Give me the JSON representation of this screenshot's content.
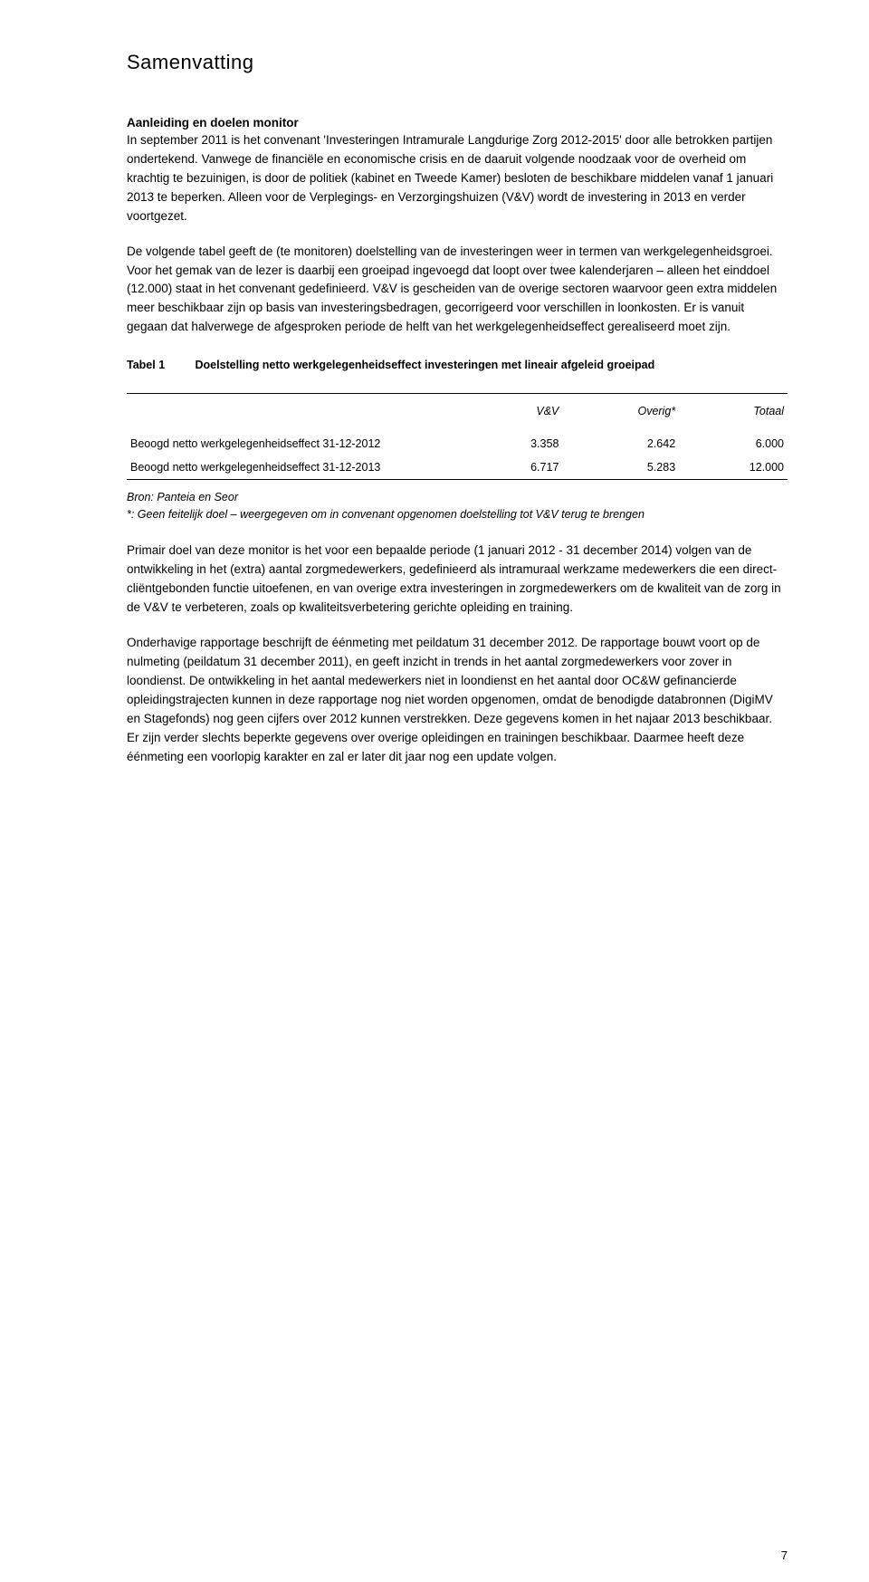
{
  "title": "Samenvatting",
  "section_head": "Aanleiding en doelen monitor",
  "p1": "In september 2011 is het convenant 'Investeringen Intramurale Langdurige Zorg 2012-2015' door alle betrokken partijen ondertekend.",
  "p2": "Vanwege de financiële en economische crisis en de daaruit volgende noodzaak voor de overheid om krachtig te bezuinigen, is door de politiek (kabinet en Tweede Kamer) besloten de beschikbare middelen vanaf 1 januari 2013 te beperken. Alleen voor de Verplegings- en Verzorgingshuizen (V&V) wordt de investering in 2013 en verder voortgezet.",
  "p3": "De volgende tabel geeft de (te monitoren) doelstelling van de investeringen weer in termen van werkgelegenheidsgroei. Voor het gemak van de lezer is daarbij een groeipad ingevoegd dat loopt over twee kalenderjaren – alleen het einddoel (12.000) staat in het convenant gedefinieerd. V&V is gescheiden van de overige sectoren waarvoor geen extra middelen meer beschikbaar zijn op basis van investeringsbedragen, gecorrigeerd voor verschillen in loonkosten. Er is vanuit gegaan dat halverwege de afgesproken periode de helft van het werkgelegenheidseffect gerealiseerd moet zijn.",
  "table_caption_label": "Tabel 1",
  "table_caption_text": "Doelstelling netto werkgelegenheidseffect investeringen met lineair afgeleid groeipad",
  "table": {
    "columns": [
      "",
      "V&V",
      "Overig*",
      "Totaal"
    ],
    "rows": [
      [
        "Beoogd netto werkgelegenheidseffect 31-12-2012",
        "3.358",
        "2.642",
        "6.000"
      ],
      [
        "Beoogd netto werkgelegenheidseffect 31-12-2013",
        "6.717",
        "5.283",
        "12.000"
      ]
    ]
  },
  "source": "Bron: Panteia en Seor",
  "footnote": "*: Geen feitelijk doel – weergegeven om in convenant opgenomen doelstelling tot V&V terug te brengen",
  "p4": "Primair doel van deze monitor is het voor een bepaalde periode (1 januari 2012 - 31 december 2014) volgen van de ontwikkeling in het (extra) aantal zorgmedewerkers, gedefinieerd als intramuraal werkzame medewerkers die een direct-cliëntgebonden functie uitoefenen, en van overige extra investeringen in zorgmedewerkers om de kwaliteit van de zorg in de V&V te verbeteren, zoals op kwaliteitsverbetering gerichte opleiding en training.",
  "p5": "Onderhavige rapportage beschrijft de éénmeting met peildatum 31 december 2012. De rapportage bouwt voort op de nulmeting (peildatum 31 december 2011), en geeft inzicht in trends in het aantal zorgmedewerkers voor zover in loondienst. De ontwikkeling in het aantal medewerkers niet in loondienst en het aantal door OC&W gefinancierde opleidingstrajecten kunnen in deze rapportage nog niet worden opgenomen, omdat de benodigde databronnen (DigiMV en Stagefonds) nog geen cijfers over 2012 kunnen verstrekken. Deze gegevens komen in het najaar 2013 beschikbaar. Er zijn verder slechts beperkte gegevens over overige opleidingen en trainingen beschikbaar. Daarmee heeft deze éénmeting een voorlopig karakter en zal er later dit jaar nog een update volgen.",
  "page_number": "7",
  "colors": {
    "text": "#000000",
    "background": "#ffffff",
    "rule": "#000000"
  },
  "fonts": {
    "body_family": "Verdana",
    "body_size_pt": 10,
    "title_size_pt": 16,
    "caption_size_pt": 9
  }
}
